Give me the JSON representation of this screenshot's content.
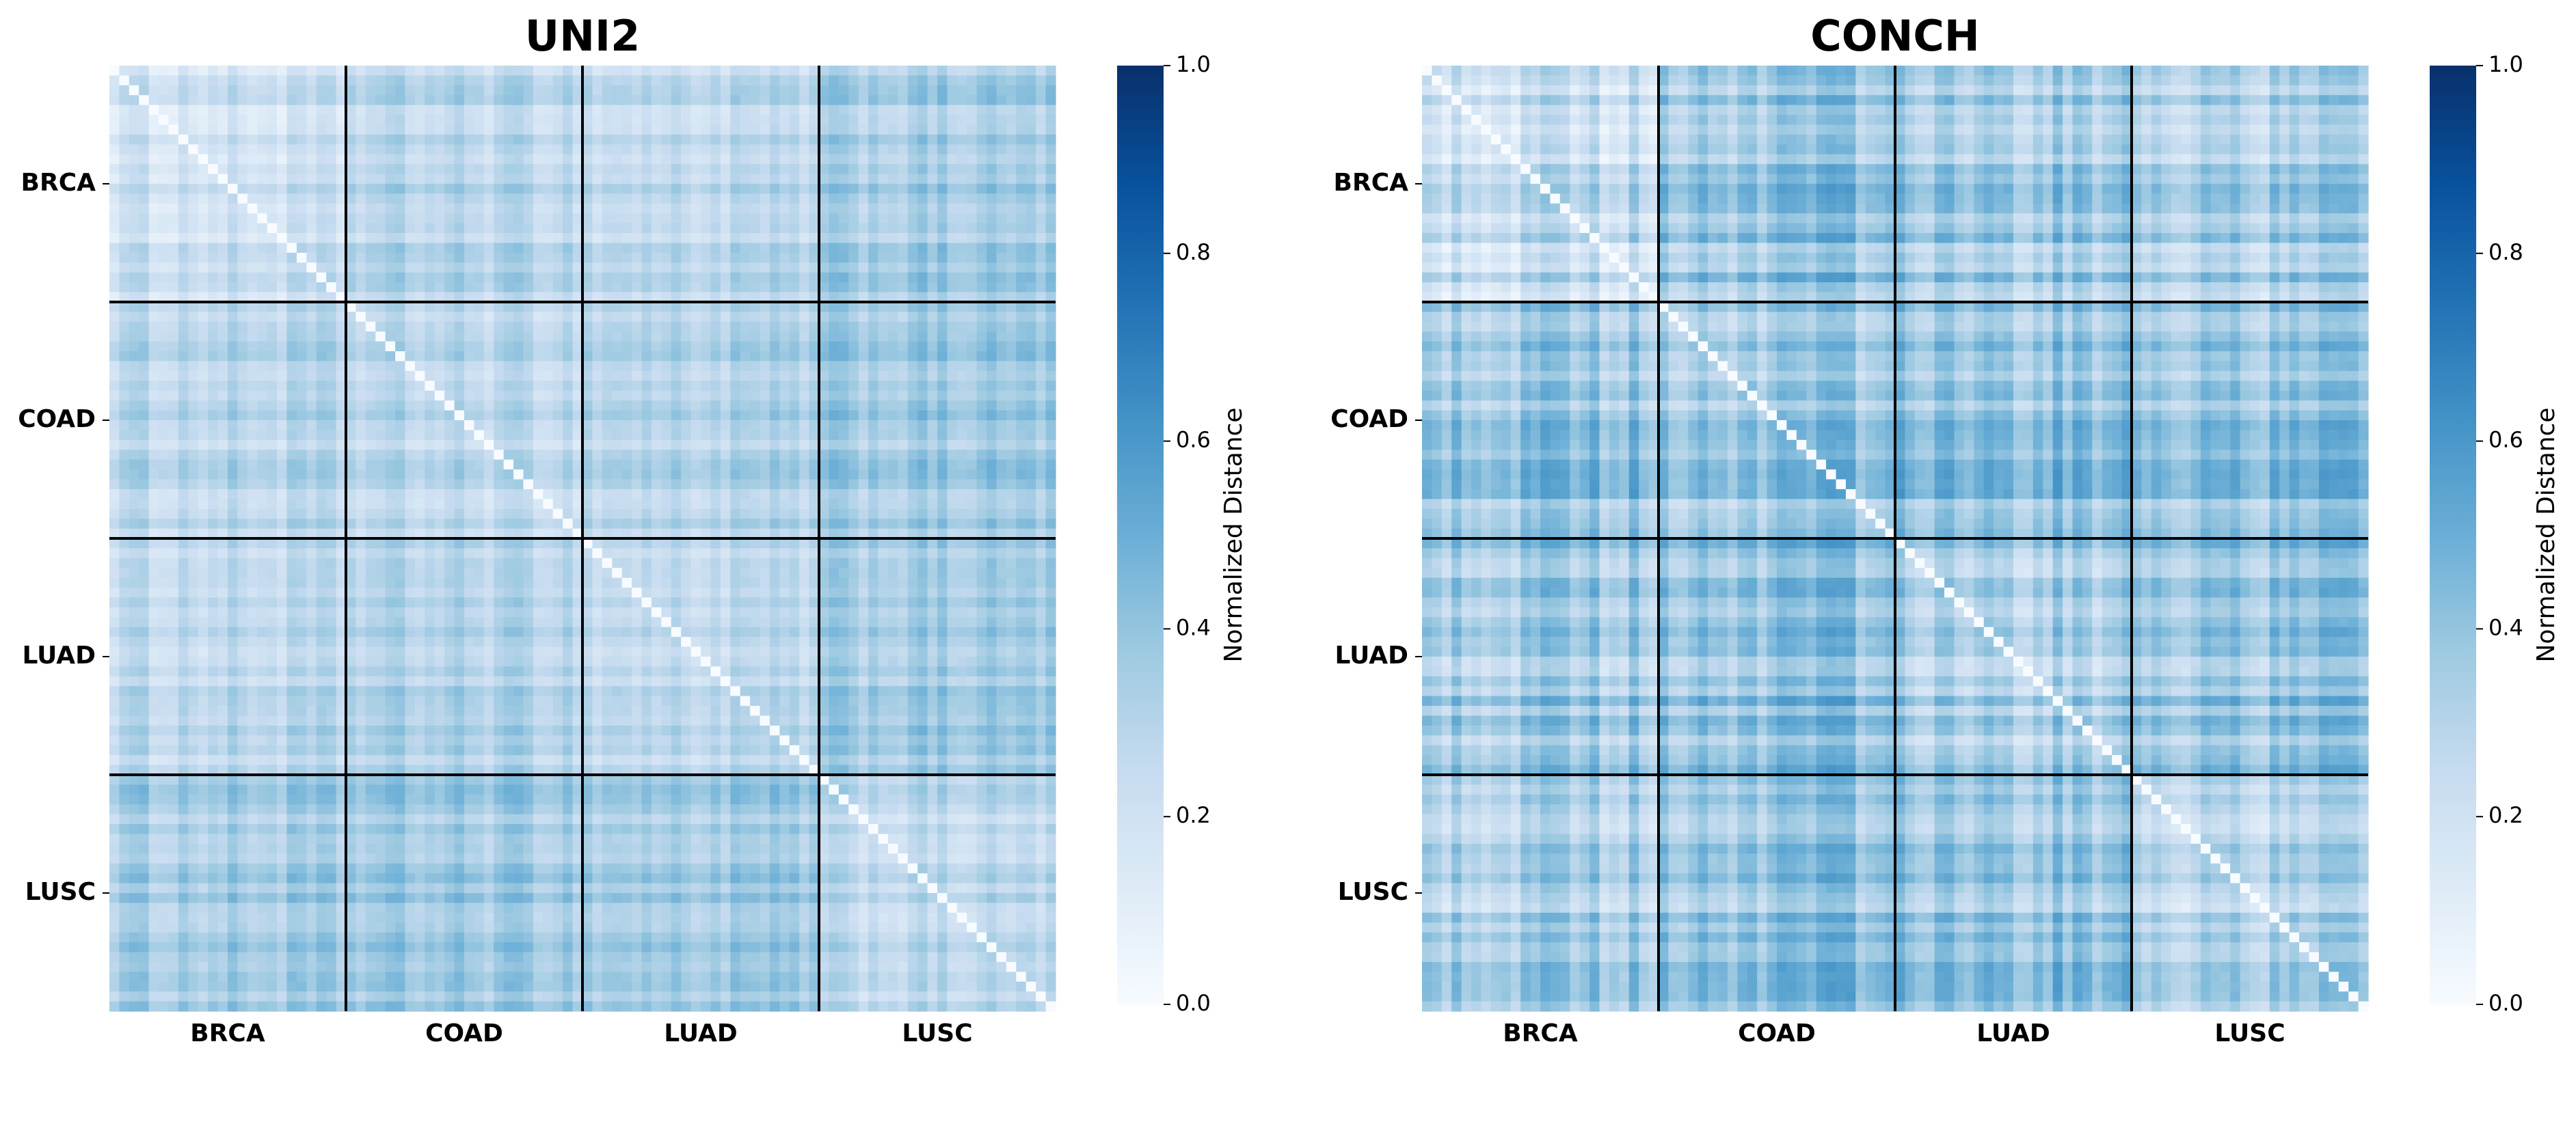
{
  "chart_data": [
    {
      "type": "heatmap",
      "title": "UNI2",
      "categories": [
        "BRCA",
        "COAD",
        "LUAD",
        "LUSC"
      ],
      "block_mean_distance": [
        [
          0.2,
          0.28,
          0.26,
          0.34
        ],
        [
          0.28,
          0.27,
          0.3,
          0.36
        ],
        [
          0.26,
          0.3,
          0.26,
          0.35
        ],
        [
          0.34,
          0.36,
          0.35,
          0.26
        ]
      ],
      "colorbar": {
        "label": "Normalized Distance",
        "range": [
          0.0,
          1.0
        ],
        "ticks": [
          "0.0",
          "0.2",
          "0.4",
          "0.6",
          "0.8",
          "1.0"
        ],
        "colormap": "Blues"
      }
    },
    {
      "type": "heatmap",
      "title": "CONCH",
      "categories": [
        "BRCA",
        "COAD",
        "LUAD",
        "LUSC"
      ],
      "block_mean_distance": [
        [
          0.24,
          0.38,
          0.36,
          0.33
        ],
        [
          0.38,
          0.36,
          0.4,
          0.39
        ],
        [
          0.36,
          0.4,
          0.33,
          0.39
        ],
        [
          0.33,
          0.39,
          0.39,
          0.3
        ]
      ],
      "colorbar": {
        "label": "Normalized Distance",
        "range": [
          0.0,
          1.0
        ],
        "ticks": [
          "0.0",
          "0.2",
          "0.4",
          "0.6",
          "0.8",
          "1.0"
        ],
        "colormap": "Blues"
      }
    }
  ],
  "colors": {
    "divider": "#000000",
    "cmap_low": "#f7fbff",
    "cmap_high": "#08306b"
  }
}
